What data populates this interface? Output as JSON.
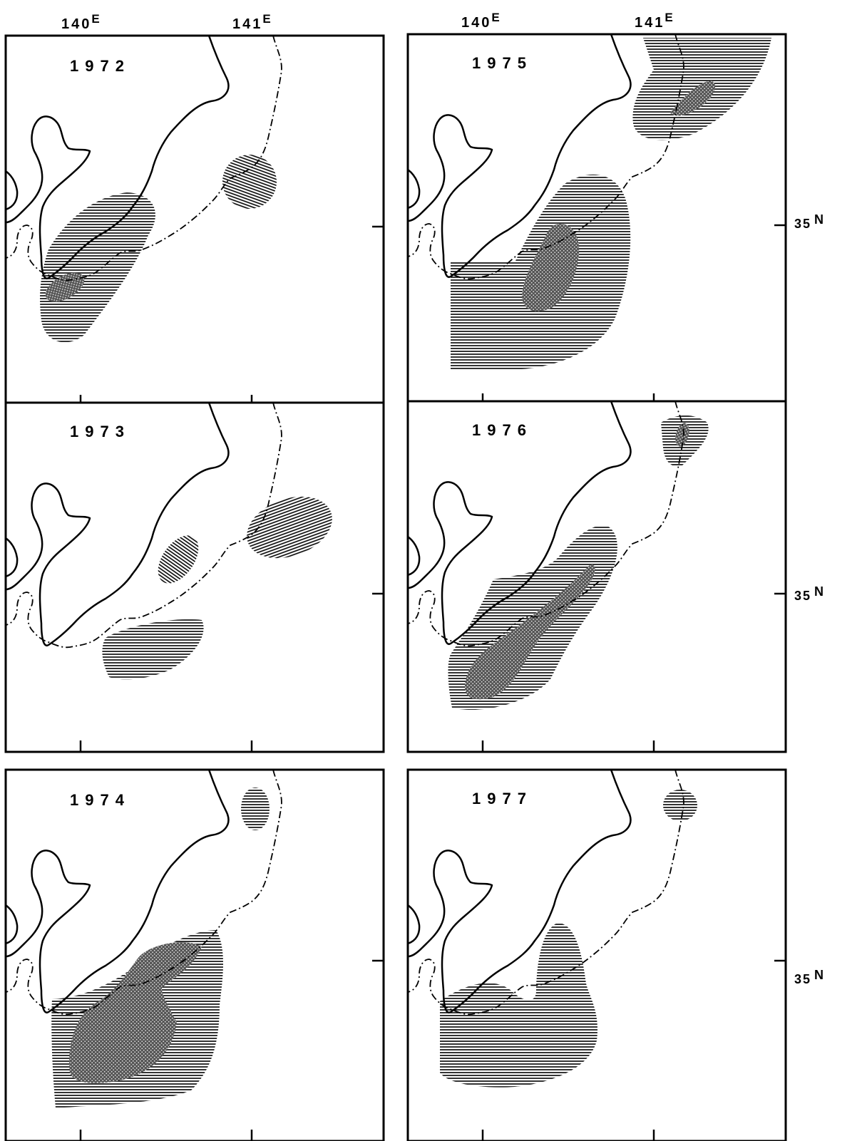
{
  "axes": {
    "lon_140": "140",
    "lon_141": "141",
    "lon_suffix": "E",
    "lat_35": "35",
    "lat_suffix": "N"
  },
  "panels": [
    {
      "id": "p1972",
      "year": "1972"
    },
    {
      "id": "p1975",
      "year": "1975"
    },
    {
      "id": "p1973",
      "year": "1973"
    },
    {
      "id": "p1976",
      "year": "1976"
    },
    {
      "id": "p1974",
      "year": "1974"
    },
    {
      "id": "p1977",
      "year": "1977"
    }
  ],
  "legend_patterns": {
    "hatched": "horizontal-line hatch area",
    "dense": "cross-hatched dense area"
  },
  "colors": {
    "ink": "#000000",
    "paper": "#ffffff"
  }
}
